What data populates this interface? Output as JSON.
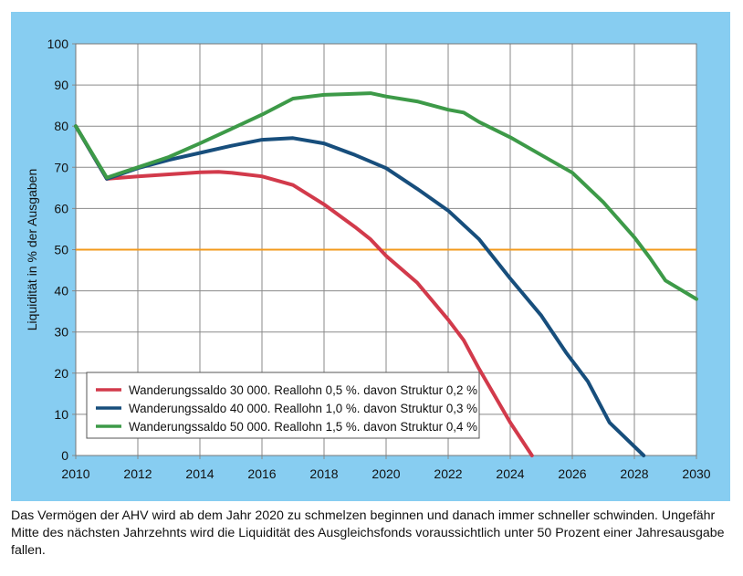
{
  "chart_data": {
    "type": "line",
    "ylabel": "Liquidität in % der Ausgaben",
    "xlabel": "",
    "xlim": [
      2010,
      2030
    ],
    "ylim": [
      0,
      100
    ],
    "xticks": [
      "2010",
      "2012",
      "2014",
      "2016",
      "2018",
      "2020",
      "2022",
      "2024",
      "2026",
      "2028",
      "2030"
    ],
    "yticks": [
      "0",
      "10",
      "20",
      "30",
      "40",
      "50",
      "60",
      "70",
      "80",
      "90",
      "100"
    ],
    "grid": true,
    "legend_position": "bottom-left",
    "reference_line": {
      "y": 50,
      "color": "#f39a1c"
    },
    "series": [
      {
        "name": "Wanderungssaldo 30 000. Reallohn 0,5 %. davon Struktur 0,2 %",
        "color": "#d23a4b",
        "x": [
          2010,
          2011,
          2012,
          2013,
          2014,
          2014.6,
          2015,
          2016,
          2017,
          2018,
          2019,
          2019.5,
          2020,
          2021,
          2022,
          2022.5,
          2023,
          2024,
          2024.7
        ],
        "y": [
          80,
          67.2,
          67.8,
          68.3,
          68.8,
          68.9,
          68.7,
          67.8,
          65.7,
          61,
          55.5,
          52.5,
          48.5,
          42,
          33,
          28,
          21,
          8,
          0
        ]
      },
      {
        "name": "Wanderungssaldo 40 000. Reallohn 1,0 %. davon Struktur 0,3 %",
        "color": "#174e7c",
        "x": [
          2010,
          2011,
          2012,
          2013,
          2014,
          2015,
          2016,
          2017,
          2018,
          2019,
          2020,
          2021,
          2022,
          2023,
          2024,
          2025,
          2025.8,
          2026.5,
          2027.2,
          2028.3
        ],
        "y": [
          80,
          67.2,
          69.8,
          71.8,
          73.5,
          75.2,
          76.7,
          77.1,
          75.8,
          73,
          69.8,
          64.8,
          59.5,
          52.5,
          43,
          34,
          25,
          18,
          8,
          0
        ]
      },
      {
        "name": "Wanderungssaldo 50 000. Reallohn 1,5 %. davon Struktur 0,4 %",
        "color": "#3d9a48",
        "x": [
          2010,
          2011,
          2012,
          2013,
          2014,
          2015,
          2016,
          2017,
          2018,
          2019.5,
          2020,
          2021,
          2022,
          2022.5,
          2023,
          2024,
          2025,
          2026,
          2027,
          2028,
          2028.5,
          2029,
          2030
        ],
        "y": [
          80,
          67.5,
          70,
          72.5,
          75.8,
          79.3,
          82.8,
          86.7,
          87.6,
          88,
          87.2,
          86,
          84,
          83.3,
          81,
          77.3,
          73,
          68.7,
          61.5,
          53,
          48,
          42.5,
          38
        ]
      }
    ]
  },
  "caption": "Das Vermögen der AHV wird ab dem Jahr 2020 zu schmelzen beginnen und danach immer schneller schwinden. Ungefähr Mitte des nächsten Jahrzehnts wird die Liquidität des Ausgleichsfonds voraussicht­lich unter 50 Prozent einer Jahresausgabe fallen."
}
